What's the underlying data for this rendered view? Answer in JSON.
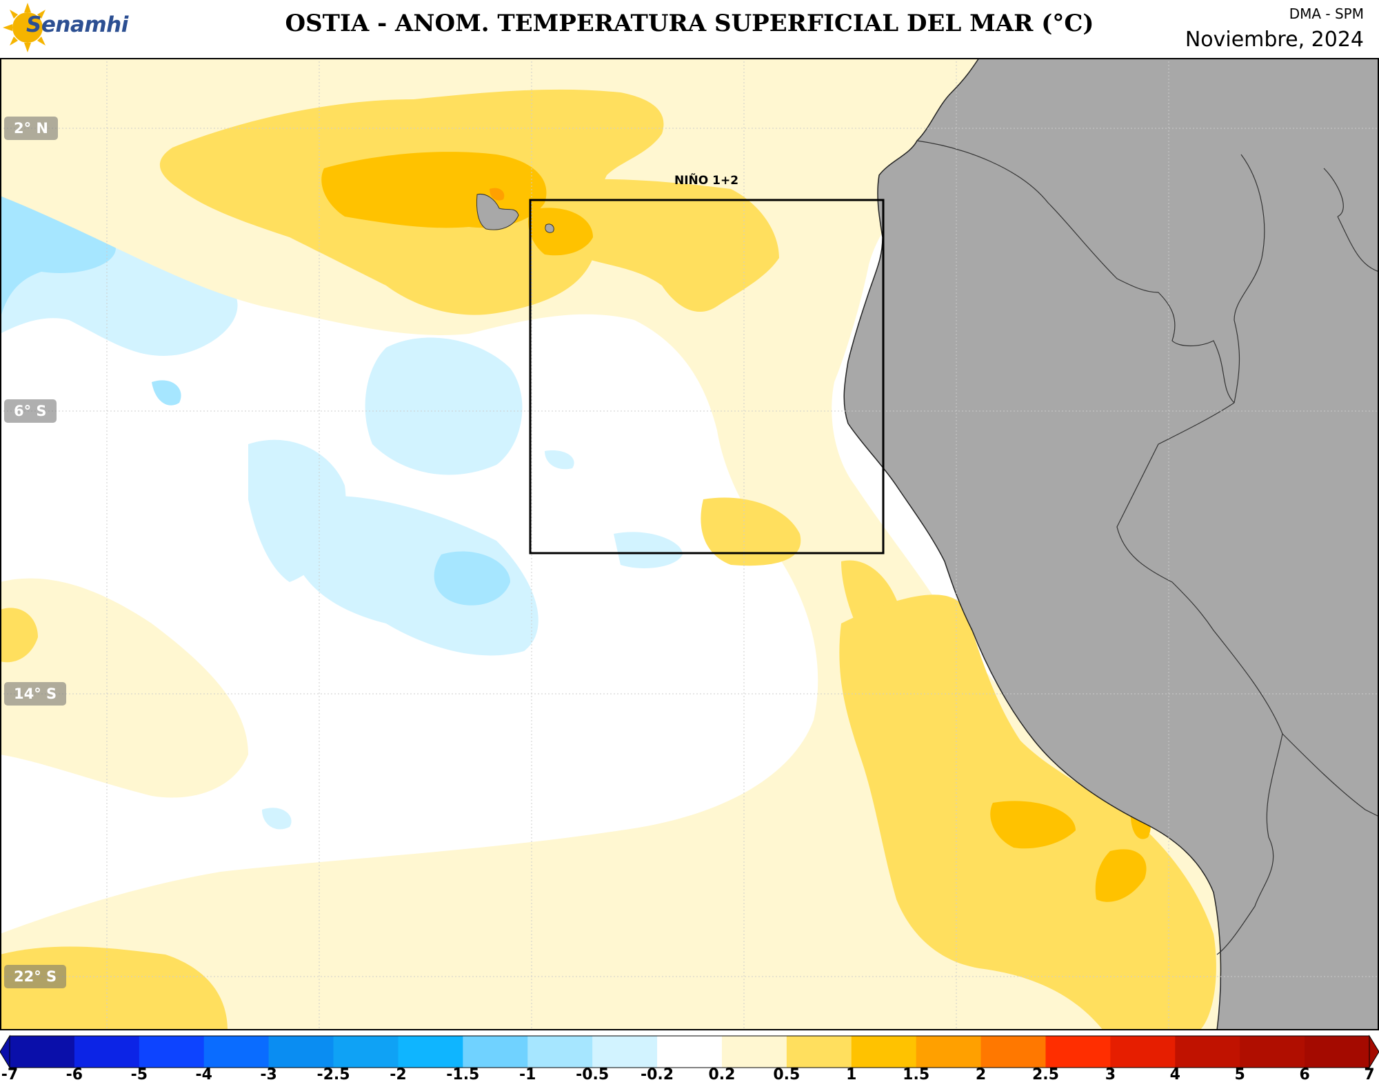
{
  "header": {
    "logo_text": "Senamhi",
    "title": "OSTIA - ANOM. TEMPERATURA SUPERFICIAL DEL MAR (°C)",
    "org": "DMA - SPM",
    "date": "Noviembre, 2024"
  },
  "map": {
    "region_label": "NIÑO 1+2",
    "lat_labels": [
      "2° N",
      "6° S",
      "14° S",
      "22° S"
    ],
    "land_color": "#a8a8a8"
  },
  "colorbar": {
    "ticks": [
      "-7",
      "-6",
      "-5",
      "-4",
      "-3",
      "-2.5",
      "-2",
      "-1.5",
      "-1",
      "-0.5",
      "-0.2",
      "0.2",
      "0.5",
      "1",
      "1.5",
      "2",
      "2.5",
      "3",
      "4",
      "5",
      "6",
      "7"
    ],
    "colors": [
      "#0a0faa",
      "#0c24e6",
      "#0d44ff",
      "#0a6cff",
      "#0a8df2",
      "#0fa2f5",
      "#0fb5ff",
      "#70d2ff",
      "#a6e6ff",
      "#d2f3ff",
      "#ffffff",
      "#fff7d1",
      "#ffdf5e",
      "#ffc200",
      "#ffa000",
      "#ff7800",
      "#ff2e00",
      "#e61e00",
      "#c01200",
      "#b00e00",
      "#a40a00"
    ]
  }
}
